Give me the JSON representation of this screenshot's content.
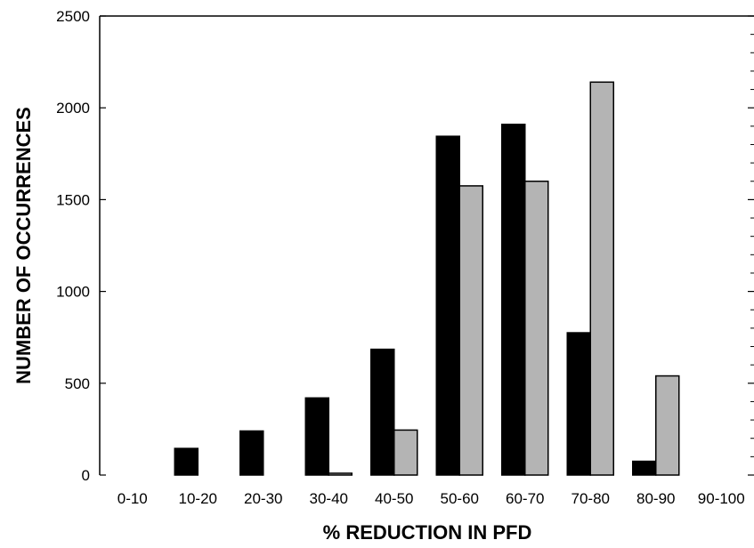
{
  "chart_data": {
    "type": "bar",
    "title": "",
    "xlabel": "% REDUCTION IN PFD",
    "ylabel": "NUMBER OF OCCURRENCES",
    "categories": [
      "0-10",
      "10-20",
      "20-30",
      "30-40",
      "40-50",
      "50-60",
      "60-70",
      "70-80",
      "80-90",
      "90-100"
    ],
    "series": [
      {
        "color": "#000000",
        "values": [
          0,
          145,
          240,
          420,
          685,
          1845,
          1910,
          775,
          75,
          0
        ]
      },
      {
        "color": "#b4b4b4",
        "values": [
          0,
          0,
          0,
          10,
          245,
          1575,
          1600,
          2140,
          540,
          0
        ]
      }
    ],
    "ylim": [
      0,
      2500
    ],
    "yticks": [
      0,
      500,
      1000,
      1500,
      2000,
      2500
    ],
    "ytick_labels": [
      "0",
      "500",
      "1000",
      "1500",
      "2000",
      "2500"
    ],
    "grid": false,
    "legend": "none"
  }
}
